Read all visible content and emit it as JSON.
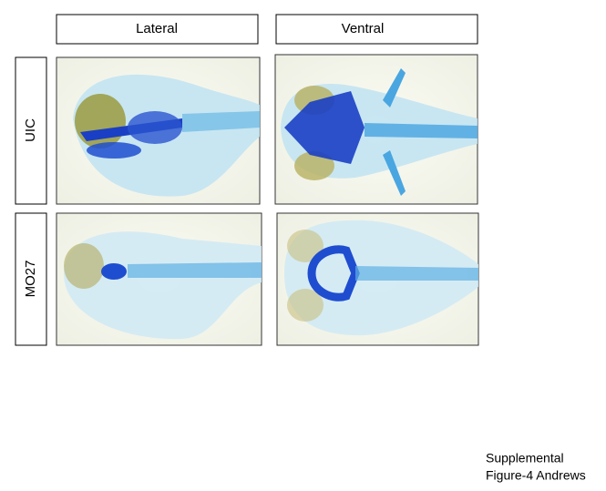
{
  "column_headers": [
    "Lateral",
    "Ventral"
  ],
  "row_labels": [
    "UIC",
    "MO27"
  ],
  "caption": [
    "Supplemental",
    "Figure-4 Andrews"
  ]
}
